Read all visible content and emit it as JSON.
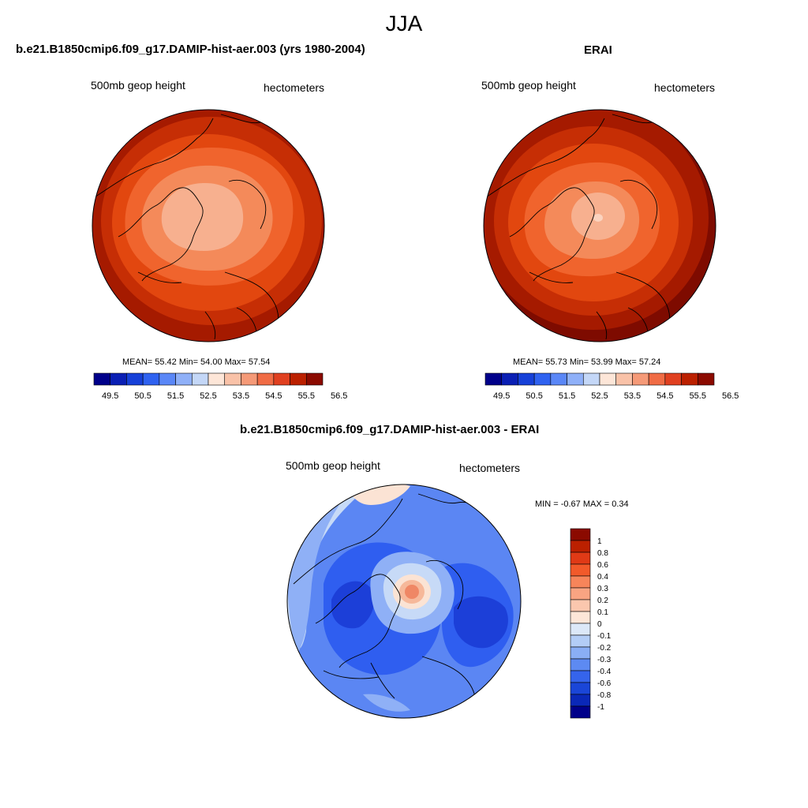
{
  "season_title": "JJA",
  "panels": [
    {
      "title": "b.e21.B1850cmip6.f09_g17.DAMIP-hist-aer.003 (yrs 1980-2004)",
      "variable": "500mb geop height",
      "units": "hectometers",
      "stats": "MEAN=  55.42  Min=  54.00  Max=  57.54"
    },
    {
      "title": "ERAI",
      "variable": "500mb geop height",
      "units": "hectometers",
      "stats": "MEAN=  55.73  Min=  53.99  Max=  57.24"
    },
    {
      "title": "b.e21.B1850cmip6.f09_g17.DAMIP-hist-aer.003 - ERAI",
      "variable": "500mb geop height",
      "units": "hectometers",
      "stats": "MIN =  -0.67 MAX =   0.34"
    }
  ],
  "abs_colorbar": {
    "colors": [
      "#00008a",
      "#0a1fb4",
      "#1640d8",
      "#2f62f0",
      "#5a87f7",
      "#8fb0f8",
      "#c4d7f7",
      "#fde6d8",
      "#f9c2a8",
      "#f59a78",
      "#f06c45",
      "#e04020",
      "#bb2000",
      "#8b0a00"
    ],
    "labels": [
      "49.5",
      "50.5",
      "51.5",
      "52.5",
      "53.5",
      "54.5",
      "55.5",
      "56.5"
    ]
  },
  "diff_colorbar": {
    "colors": [
      "#8b0a00",
      "#bb2000",
      "#e03a16",
      "#f25a2a",
      "#f7855a",
      "#f9a482",
      "#fbc7ae",
      "#fde6d8",
      "#dce8f8",
      "#b3cdf6",
      "#8aaef5",
      "#5d8af2",
      "#3564ec",
      "#1a46d8",
      "#0a28b8",
      "#00008a"
    ],
    "labels": [
      "1",
      "0.8",
      "0.6",
      "0.4",
      "0.3",
      "0.2",
      "0.1",
      "0",
      "-0.1",
      "-0.2",
      "-0.3",
      "-0.4",
      "-0.6",
      "-0.8",
      "-1"
    ]
  },
  "color_notes": {
    "polar_high_bands": [
      "#7e0b00",
      "#a51a00",
      "#c62e05",
      "#e2470f",
      "#f0642d",
      "#f48a5a",
      "#f7b08f"
    ],
    "diff_field": [
      "#1c3fd8",
      "#2f5ef0",
      "#5b86f3",
      "#8fb0f6",
      "#c7daf7",
      "#fbe3d4",
      "#f6b89a",
      "#ef8765"
    ]
  }
}
